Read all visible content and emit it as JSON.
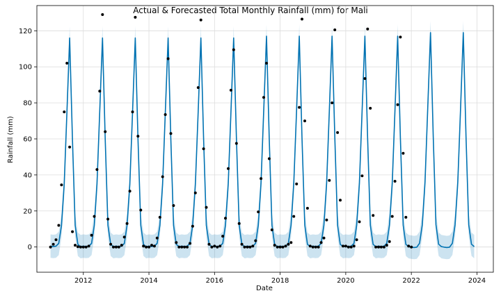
{
  "chart_data": {
    "type": "line",
    "title": "Actual & Forecasted Total Monthly Rainfall (mm) for Mali",
    "xlabel": "Date",
    "ylabel": "Rainfall (mm)",
    "xlim": [
      "2010-08-01",
      "2024-07-01"
    ],
    "ylim": [
      -14,
      134
    ],
    "xticks": [
      "2012",
      "2014",
      "2016",
      "2018",
      "2020",
      "2022",
      "2024"
    ],
    "yticks": [
      0,
      20,
      40,
      60,
      80,
      100,
      120
    ],
    "grid": true,
    "colors": {
      "forecast_line": "#0072B2",
      "interval_fill": "#0072B2",
      "actual_points": "#000000"
    },
    "monthly_profile_mm": [
      0.5,
      0.3,
      0.5,
      2.0,
      12.0,
      35.0,
      75.0,
      116.0,
      60.0,
      12.0,
      1.5,
      0.2
    ],
    "series": [
      {
        "kind": "forecast_line",
        "start": "2011-01",
        "end": "2023-12",
        "year_peak_mm": {
          "2011": 116,
          "2012": 116,
          "2013": 116,
          "2014": 116,
          "2015": 116,
          "2016": 116,
          "2017": 117,
          "2018": 117,
          "2019": 117,
          "2020": 117,
          "2021": 117,
          "2022": 119,
          "2023": 119
        },
        "interval_halfwidth_mm": 6.5
      },
      {
        "kind": "actual_points",
        "points": [
          [
            "2011-01",
            0.0
          ],
          [
            "2011-02",
            1.5
          ],
          [
            "2011-03",
            4.0
          ],
          [
            "2011-04",
            12.0
          ],
          [
            "2011-05",
            34.5
          ],
          [
            "2011-06",
            75.0
          ],
          [
            "2011-07",
            102.0
          ],
          [
            "2011-08",
            55.5
          ],
          [
            "2011-09",
            8.5
          ],
          [
            "2011-10",
            1.0
          ],
          [
            "2011-11",
            0.2
          ],
          [
            "2011-12",
            0.0
          ],
          [
            "2012-01",
            0.0
          ],
          [
            "2012-02",
            0.0
          ],
          [
            "2012-03",
            0.5
          ],
          [
            "2012-04",
            6.5
          ],
          [
            "2012-05",
            17.0
          ],
          [
            "2012-06",
            43.0
          ],
          [
            "2012-07",
            86.5
          ],
          [
            "2012-08",
            129.0
          ],
          [
            "2012-09",
            64.0
          ],
          [
            "2012-10",
            15.5
          ],
          [
            "2012-11",
            1.5
          ],
          [
            "2012-12",
            0.0
          ],
          [
            "2013-01",
            0.0
          ],
          [
            "2013-02",
            0.0
          ],
          [
            "2013-03",
            1.0
          ],
          [
            "2013-04",
            5.5
          ],
          [
            "2013-05",
            13.0
          ],
          [
            "2013-06",
            31.0
          ],
          [
            "2013-07",
            75.0
          ],
          [
            "2013-08",
            127.5
          ],
          [
            "2013-09",
            61.5
          ],
          [
            "2013-10",
            20.5
          ],
          [
            "2013-11",
            0.5
          ],
          [
            "2013-12",
            0.0
          ],
          [
            "2014-01",
            0.0
          ],
          [
            "2014-02",
            1.0
          ],
          [
            "2014-03",
            0.5
          ],
          [
            "2014-04",
            5.0
          ],
          [
            "2014-05",
            16.5
          ],
          [
            "2014-06",
            39.0
          ],
          [
            "2014-07",
            73.5
          ],
          [
            "2014-08",
            104.5
          ],
          [
            "2014-09",
            63.0
          ],
          [
            "2014-10",
            23.0
          ],
          [
            "2014-11",
            2.5
          ],
          [
            "2014-12",
            0.0
          ],
          [
            "2015-01",
            0.0
          ],
          [
            "2015-02",
            0.0
          ],
          [
            "2015-03",
            0.0
          ],
          [
            "2015-04",
            2.0
          ],
          [
            "2015-05",
            11.5
          ],
          [
            "2015-06",
            30.0
          ],
          [
            "2015-07",
            88.5
          ],
          [
            "2015-08",
            126.0
          ],
          [
            "2015-09",
            54.5
          ],
          [
            "2015-10",
            22.0
          ],
          [
            "2015-11",
            1.5
          ],
          [
            "2015-12",
            0.0
          ],
          [
            "2016-01",
            0.5
          ],
          [
            "2016-02",
            0.0
          ],
          [
            "2016-03",
            0.5
          ],
          [
            "2016-04",
            6.0
          ],
          [
            "2016-05",
            16.0
          ],
          [
            "2016-06",
            43.5
          ],
          [
            "2016-07",
            87.0
          ],
          [
            "2016-08",
            109.5
          ],
          [
            "2016-09",
            57.5
          ],
          [
            "2016-10",
            13.0
          ],
          [
            "2016-11",
            1.5
          ],
          [
            "2016-12",
            0.0
          ],
          [
            "2017-01",
            0.0
          ],
          [
            "2017-02",
            0.0
          ],
          [
            "2017-03",
            0.5
          ],
          [
            "2017-04",
            3.5
          ],
          [
            "2017-05",
            19.5
          ],
          [
            "2017-06",
            38.0
          ],
          [
            "2017-07",
            83.0
          ],
          [
            "2017-08",
            102.0
          ],
          [
            "2017-09",
            49.0
          ],
          [
            "2017-10",
            9.5
          ],
          [
            "2017-11",
            1.0
          ],
          [
            "2017-12",
            0.0
          ],
          [
            "2018-01",
            0.0
          ],
          [
            "2018-02",
            0.0
          ],
          [
            "2018-03",
            0.5
          ],
          [
            "2018-04",
            1.5
          ],
          [
            "2018-05",
            2.5
          ],
          [
            "2018-06",
            17.0
          ],
          [
            "2018-07",
            35.0
          ],
          [
            "2018-08",
            77.5
          ],
          [
            "2018-09",
            126.5
          ],
          [
            "2018-10",
            70.0
          ],
          [
            "2018-11",
            21.5
          ],
          [
            "2018-12",
            0.5
          ],
          [
            "2019-01",
            0.0
          ],
          [
            "2019-02",
            0.0
          ],
          [
            "2019-03",
            0.0
          ],
          [
            "2019-04",
            2.5
          ],
          [
            "2019-05",
            5.0
          ],
          [
            "2019-06",
            15.0
          ],
          [
            "2019-07",
            37.0
          ],
          [
            "2019-08",
            80.0
          ],
          [
            "2019-09",
            120.5
          ],
          [
            "2019-10",
            63.5
          ],
          [
            "2019-11",
            26.0
          ],
          [
            "2019-12",
            0.5
          ],
          [
            "2020-01",
            0.5
          ],
          [
            "2020-02",
            0.0
          ],
          [
            "2020-03",
            0.0
          ],
          [
            "2020-04",
            0.5
          ],
          [
            "2020-05",
            4.0
          ],
          [
            "2020-06",
            14.0
          ],
          [
            "2020-07",
            39.5
          ],
          [
            "2020-08",
            93.5
          ],
          [
            "2020-09",
            121.0
          ],
          [
            "2020-10",
            77.0
          ],
          [
            "2020-11",
            17.5
          ],
          [
            "2020-12",
            0.0
          ],
          [
            "2021-01",
            0.0
          ],
          [
            "2021-02",
            0.0
          ],
          [
            "2021-03",
            0.0
          ],
          [
            "2021-04",
            1.0
          ],
          [
            "2021-05",
            3.0
          ],
          [
            "2021-06",
            17.0
          ],
          [
            "2021-07",
            36.5
          ],
          [
            "2021-08",
            79.0
          ],
          [
            "2021-09",
            116.5
          ],
          [
            "2021-10",
            52.0
          ],
          [
            "2021-11",
            16.5
          ],
          [
            "2021-12",
            0.5
          ],
          [
            "2022-01",
            0.0
          ]
        ]
      }
    ]
  }
}
